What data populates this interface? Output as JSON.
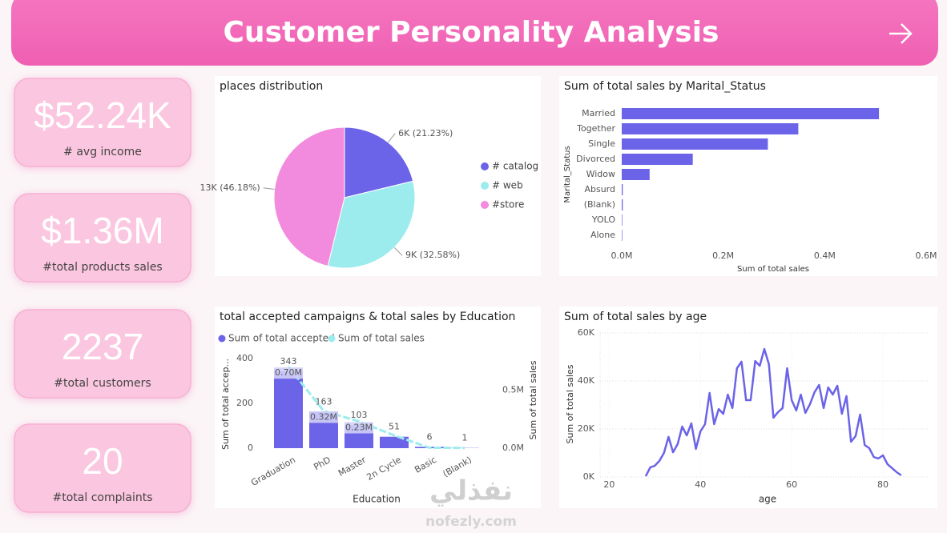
{
  "header": {
    "title": "Customer Personality Analysis"
  },
  "kpis": [
    {
      "value": "$52.24K",
      "label": "# avg income"
    },
    {
      "value": "$1.36M",
      "label": "#total products sales"
    },
    {
      "value": "2237",
      "label": "#total customers"
    },
    {
      "value": "20",
      "label": "#total complaints"
    }
  ],
  "watermark": {
    "arabic": "نفذلي",
    "latin": "nofezly.com"
  },
  "chart_data": [
    {
      "type": "pie",
      "title": "places distribution",
      "series": [
        {
          "name": "# catalog",
          "color": "#6b63e8"
        },
        {
          "name": "# web",
          "color": "#9ceced"
        },
        {
          "name": "#store",
          "color": "#f28ade"
        }
      ],
      "values": [
        21.23,
        32.58,
        46.18
      ],
      "value_labels": [
        "6K (21.23%)",
        "9K (32.58%)",
        "13K (46.18%)"
      ]
    },
    {
      "type": "hbar",
      "title": "Sum of total sales by Marital_Status",
      "categories": [
        "Married",
        "Together",
        "Single",
        "Divorced",
        "Widow",
        "Absurd",
        "(Blank)",
        "YOLO",
        "Alone"
      ],
      "values": [
        0.507,
        0.348,
        0.288,
        0.14,
        0.055,
        0.002,
        0.002,
        0.001,
        0.001
      ],
      "color": "#6b63e8",
      "xlim": [
        0,
        0.6
      ],
      "xticks": [
        {
          "value": 0,
          "label": "0.0M"
        },
        {
          "value": 0.2,
          "label": "0.2M"
        },
        {
          "value": 0.4,
          "label": "0.4M"
        },
        {
          "value": 0.6,
          "label": "0.6M"
        }
      ],
      "xlabel": "Sum of total sales",
      "ylabel": "Marital_Status"
    },
    {
      "type": "combo",
      "title": "total accepted campaigns & total sales by Education",
      "categories": [
        "Graduation",
        "PhD",
        "Master",
        "2n Cycle",
        "Basic",
        "(Blank)"
      ],
      "series": [
        {
          "name": "Sum of total accepted",
          "type": "bar",
          "color": "#6b63e8",
          "values": [
            343,
            163,
            103,
            51,
            6,
            1
          ]
        },
        {
          "name": "Sum of total sales",
          "type": "line",
          "axis": "y2",
          "color": "#9ceced",
          "values": [
            0.7,
            0.32,
            0.23,
            0.11,
            0.004,
            0.002
          ],
          "value_labels": [
            "0.70M",
            "0.32M",
            "0.23M",
            null,
            null,
            null
          ]
        }
      ],
      "ylim": [
        0,
        400
      ],
      "yticks": [
        0,
        200,
        400
      ],
      "y2lim": [
        0,
        0.77
      ],
      "y2ticks": [
        {
          "value": 0,
          "label": "0.0M"
        },
        {
          "value": 0.5,
          "label": "0.5M"
        }
      ],
      "xlabel": "Education",
      "ylabel": "Sum of total accep...",
      "y2label": "Sum of total sales"
    },
    {
      "type": "line",
      "title": "Sum of total sales by age",
      "x": [
        28,
        29,
        30,
        31,
        32,
        33,
        34,
        35,
        36,
        37,
        38,
        39,
        40,
        41,
        42,
        43,
        44,
        45,
        46,
        47,
        48,
        49,
        50,
        51,
        52,
        53,
        54,
        55,
        56,
        57,
        58,
        59,
        60,
        61,
        62,
        63,
        64,
        65,
        66,
        67,
        68,
        69,
        70,
        71,
        72,
        73,
        74,
        75,
        76,
        77,
        78,
        79,
        80,
        81,
        82,
        83,
        84
      ],
      "values": [
        0.3,
        4,
        4.7,
        6.7,
        10,
        16.7,
        10.3,
        13.7,
        21,
        17.3,
        22.3,
        11.7,
        19,
        22,
        35,
        22,
        28.3,
        26.3,
        34.3,
        28.7,
        45.3,
        48,
        32,
        32,
        48.3,
        46.3,
        53.3,
        47,
        24.7,
        27,
        28.7,
        45.3,
        32,
        27.7,
        34.3,
        26.7,
        30.3,
        35.3,
        38.3,
        28.7,
        37.3,
        34.3,
        38,
        26.3,
        33.7,
        14.7,
        17,
        26,
        13.3,
        12,
        8.3,
        7.7,
        9,
        5.3,
        3.7,
        2,
        0.7
      ],
      "color": "#6b63e8",
      "xlim": [
        18,
        90
      ],
      "xticks": [
        20,
        40,
        60,
        80
      ],
      "ylim": [
        0,
        60
      ],
      "yticks": [
        {
          "value": 0,
          "label": "0K"
        },
        {
          "value": 20,
          "label": "20K"
        },
        {
          "value": 40,
          "label": "40K"
        },
        {
          "value": 60,
          "label": "60K"
        }
      ],
      "grid": true,
      "xlabel": "age",
      "ylabel": "Sum of total sales"
    }
  ]
}
